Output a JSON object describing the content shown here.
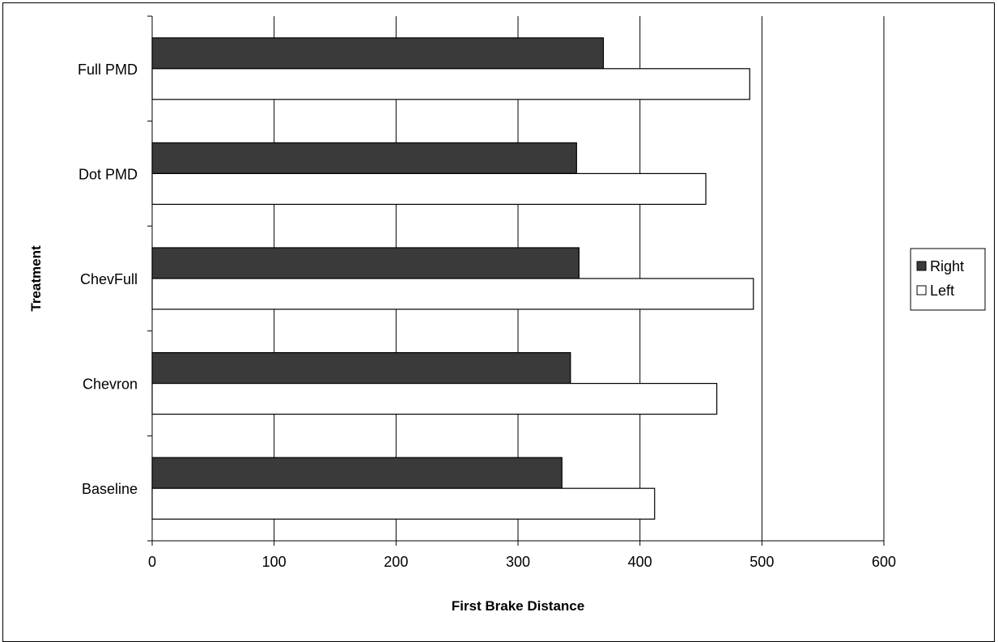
{
  "chart_data": {
    "type": "bar",
    "orientation": "horizontal",
    "categories": [
      "Baseline",
      "Chevron",
      "ChevFull",
      "Dot PMD",
      "Full PMD"
    ],
    "series": [
      {
        "name": "Right",
        "values": [
          336,
          343,
          350,
          348,
          370
        ],
        "color": "#3a3a3a"
      },
      {
        "name": "Left",
        "values": [
          412,
          463,
          493,
          454,
          490
        ],
        "color": "#ffffff"
      }
    ],
    "xlabel": "First Brake Distance",
    "ylabel": "Treatment",
    "xlim": [
      0,
      600
    ],
    "xticks": [
      0,
      100,
      200,
      300,
      400,
      500,
      600
    ],
    "grid": "vertical",
    "legend_position": "right"
  }
}
